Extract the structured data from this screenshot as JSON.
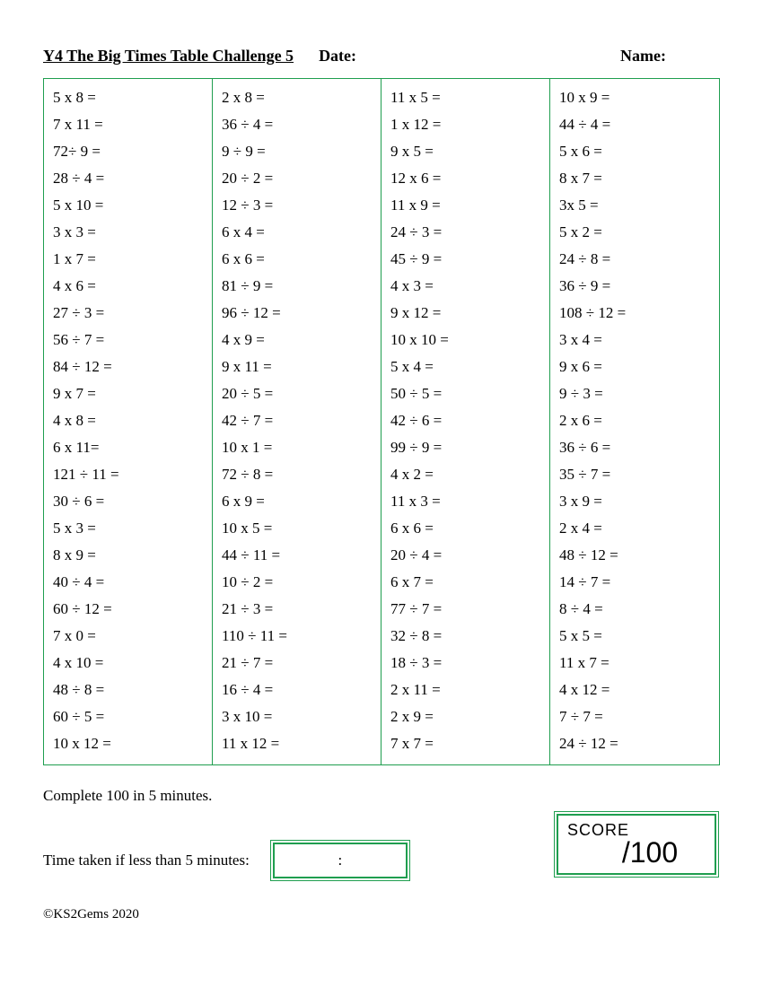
{
  "header": {
    "title": "Y4 The Big Times Table Challenge 5",
    "date_label": "Date:",
    "name_label": "Name:"
  },
  "border_color": "#1f9e4f",
  "background_color": "#ffffff",
  "font_family": "Comic Sans MS",
  "cell_fontsize": 17,
  "columns": [
    [
      "5 x 8 =",
      "7 x 11 =",
      "72÷ 9 =",
      "28 ÷ 4 =",
      "5 x 10 =",
      "3 x 3 =",
      "1 x 7 =",
      "4 x 6 =",
      "27 ÷ 3 =",
      "56 ÷ 7 =",
      "84 ÷ 12 =",
      "9 x 7 =",
      "4 x 8 =",
      "6 x 11=",
      "121 ÷ 11 =",
      "30 ÷ 6 =",
      "5 x 3 =",
      "8 x 9 =",
      "40 ÷ 4 =",
      "60 ÷ 12 =",
      "7 x 0 =",
      "4 x 10 =",
      "48 ÷ 8 =",
      "60 ÷ 5 =",
      "10 x 12 ="
    ],
    [
      "2 x 8 =",
      "36 ÷ 4 =",
      "9 ÷ 9 =",
      "20  ÷ 2 =",
      "12 ÷ 3 =",
      "6 x 4 =",
      "6 x 6 =",
      "81 ÷ 9 =",
      "96 ÷ 12 =",
      "4 x 9 =",
      "9 x 11 =",
      "20 ÷ 5 =",
      "42  ÷ 7 =",
      "10 x 1 =",
      "72 ÷ 8 =",
      "6  x 9 =",
      "10 x 5 =",
      "44 ÷ 11 =",
      "10 ÷ 2 =",
      "21 ÷ 3 =",
      "110 ÷ 11 =",
      "21 ÷ 7 =",
      "16 ÷ 4 =",
      "3 x 10 =",
      "11  x 12 ="
    ],
    [
      "11 x 5 =",
      "1 x 12 =",
      "9 x 5 =",
      "12 x 6 =",
      "11 x 9 =",
      "24 ÷ 3 =",
      "45 ÷ 9 =",
      "4  x 3 =",
      "9 x 12 =",
      "10 x 10 =",
      "5 x 4 =",
      "50 ÷ 5 =",
      "42 ÷ 6 =",
      "99 ÷ 9 =",
      "4 x 2 =",
      "11 x 3 =",
      "6 x 6 =",
      "20 ÷ 4 =",
      "6 x 7 =",
      "77 ÷ 7 =",
      "32  ÷ 8 =",
      "18 ÷ 3 =",
      "2 x 11 =",
      "2  x 9 =",
      "7  x 7 ="
    ],
    [
      "10  x 9 =",
      "44 ÷ 4 =",
      "5 x 6 =",
      "8  x 7 =",
      "3x 5 =",
      "5 x 2 =",
      "24 ÷ 8 =",
      "36 ÷ 9 =",
      "108 ÷ 12 =",
      "3 x 4 =",
      "9 x 6 =",
      "9 ÷ 3 =",
      "2 x 6 =",
      "36 ÷ 6 =",
      "35 ÷ 7 =",
      "3 x 9 =",
      "2 x 4 =",
      "48 ÷ 12 =",
      "14 ÷ 7 =",
      "8 ÷ 4 =",
      "5 x 5 =",
      "11 x 7 =",
      "4 x 12 =",
      "7 ÷ 7 =",
      "24 ÷ 12 ="
    ]
  ],
  "footer": {
    "instruction1": "Complete 100 in 5 minutes.",
    "instruction2": "Time taken if less than 5 minutes:",
    "time_placeholder": ":",
    "score_label": "SCORE",
    "score_value": "/100",
    "copyright": "©KS2Gems 2020"
  }
}
